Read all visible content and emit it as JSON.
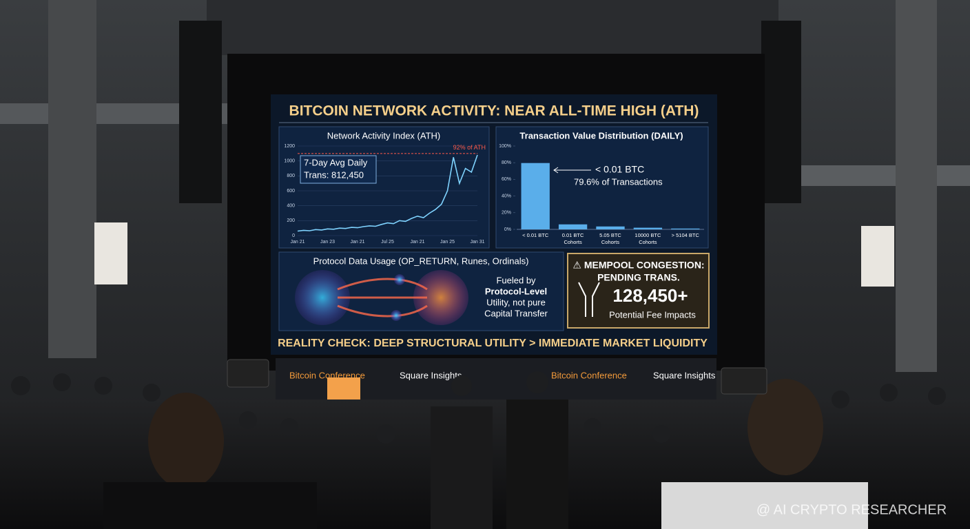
{
  "screen": {
    "title": "BITCOIN NETWORK ACTIVITY: NEAR ALL-TIME HIGH (ATH)",
    "footer": "REALITY CHECK: DEEP STRUCTURAL UTILITY > IMMEDIATE MARKET LIQUIDITY"
  },
  "chart_data": [
    {
      "type": "line",
      "title": "Network Activity Index (ATH)",
      "categories": [
        "Jan 21",
        null,
        null,
        null,
        null,
        "Jan 23",
        null,
        null,
        null,
        null,
        "Jan 21",
        null,
        null,
        null,
        null,
        "Jul 25",
        null,
        null,
        null,
        null,
        "Jan 21",
        null,
        null,
        null,
        null,
        "Jan 25",
        null,
        null,
        null,
        null,
        "Jan 31"
      ],
      "series": [
        {
          "name": "Network Activity Index",
          "color": "#7fd3ff",
          "values": [
            60,
            70,
            65,
            80,
            75,
            90,
            85,
            100,
            95,
            110,
            105,
            120,
            130,
            125,
            150,
            170,
            160,
            200,
            190,
            230,
            260,
            240,
            300,
            350,
            420,
            600,
            1050,
            700,
            900,
            850,
            1080
          ]
        }
      ],
      "ylim": [
        0,
        1200
      ],
      "yticks": [
        0,
        200,
        400,
        600,
        800,
        1000,
        1200
      ],
      "grid": true,
      "reference": {
        "value": 1100,
        "label": "92% of ATH",
        "color": "#ff5a4a"
      },
      "annotation": [
        "7-Day Avg Daily",
        "Trans: 812,450"
      ]
    },
    {
      "type": "bar",
      "title": "Transaction Value Distribution (DAILY)",
      "categories": [
        [
          "< 0.01 BTC"
        ],
        [
          "0.01 BTC",
          "Cohorts"
        ],
        [
          "5.05 BTC",
          "Cohorts"
        ],
        [
          "10000 BTC",
          "Cohorts"
        ],
        [
          "> 5104 BTC"
        ]
      ],
      "values": [
        79.6,
        6,
        3.5,
        2,
        1
      ],
      "color": "#5aaeea",
      "ylim": [
        0,
        100
      ],
      "yticks": [
        {
          "value": 0,
          "label": "0%"
        },
        {
          "value": 20,
          "label": "20%"
        },
        {
          "value": 40,
          "label": "40%"
        },
        {
          "value": 60,
          "label": "60%"
        },
        {
          "value": 80,
          "label": "80%"
        },
        {
          "value": 100,
          "label": "100%"
        }
      ],
      "annotation": [
        "< 0.01 BTC",
        "79.6% of Transactions"
      ]
    }
  ],
  "protocol": {
    "title": "Protocol Data Usage (OP_RETURN, Runes, Ordinals)",
    "text": [
      "Fueled by",
      "Protocol-Level",
      "Utility, not pure",
      "Capital Transfer"
    ]
  },
  "mempool": {
    "lines": [
      "⚠ MEMPOOL CONGESTION:",
      "PENDING TRANS."
    ],
    "count": "128,450+",
    "note": "Potential Fee Impacts"
  },
  "stage_signs": [
    "Bitcoin Conference",
    "Square Insights",
    "Bitcoin Conference",
    "Square Insights"
  ],
  "watermark": "@ AI CRYPTO RESEARCHER"
}
